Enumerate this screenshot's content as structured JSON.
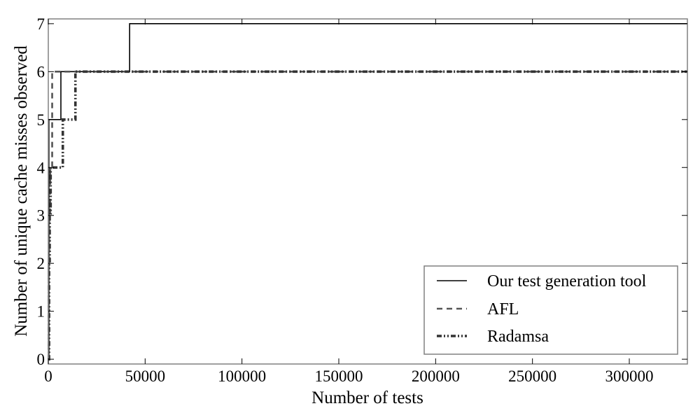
{
  "chart_data": {
    "type": "line",
    "title": "",
    "xlabel": "Number of tests",
    "ylabel": "Number of unique cache misses observed",
    "xlim": [
      0,
      330000
    ],
    "ylim": [
      -0.1,
      7.1
    ],
    "xticks": [
      0,
      50000,
      100000,
      150000,
      200000,
      250000,
      300000
    ],
    "xtick_labels": [
      "0",
      "50000",
      "100000",
      "150000",
      "200000",
      "250000",
      "300000"
    ],
    "yticks": [
      0,
      1,
      2,
      3,
      4,
      5,
      6,
      7
    ],
    "ytick_labels": [
      "0",
      "1",
      "2",
      "3",
      "4",
      "5",
      "6",
      "7"
    ],
    "grid": false,
    "legend_position": "lower-right",
    "series": [
      {
        "name": "Our test generation tool",
        "color": "#000000",
        "style": "solid",
        "step": true,
        "x": [
          0,
          300,
          6500,
          42000,
          330000
        ],
        "y": [
          0,
          5,
          6,
          7,
          7
        ]
      },
      {
        "name": "AFL",
        "color": "#555555",
        "style": "dashed",
        "step": true,
        "x": [
          0,
          200,
          500,
          1000,
          2000,
          330000
        ],
        "y": [
          0,
          2,
          3,
          4,
          6,
          6
        ]
      },
      {
        "name": "Radamsa",
        "color": "#333333",
        "style": "dash-dot-dot",
        "step": true,
        "x": [
          0,
          400,
          700,
          1200,
          7500,
          14000,
          330000
        ],
        "y": [
          0,
          2,
          3,
          4,
          5,
          6,
          6
        ]
      }
    ]
  }
}
